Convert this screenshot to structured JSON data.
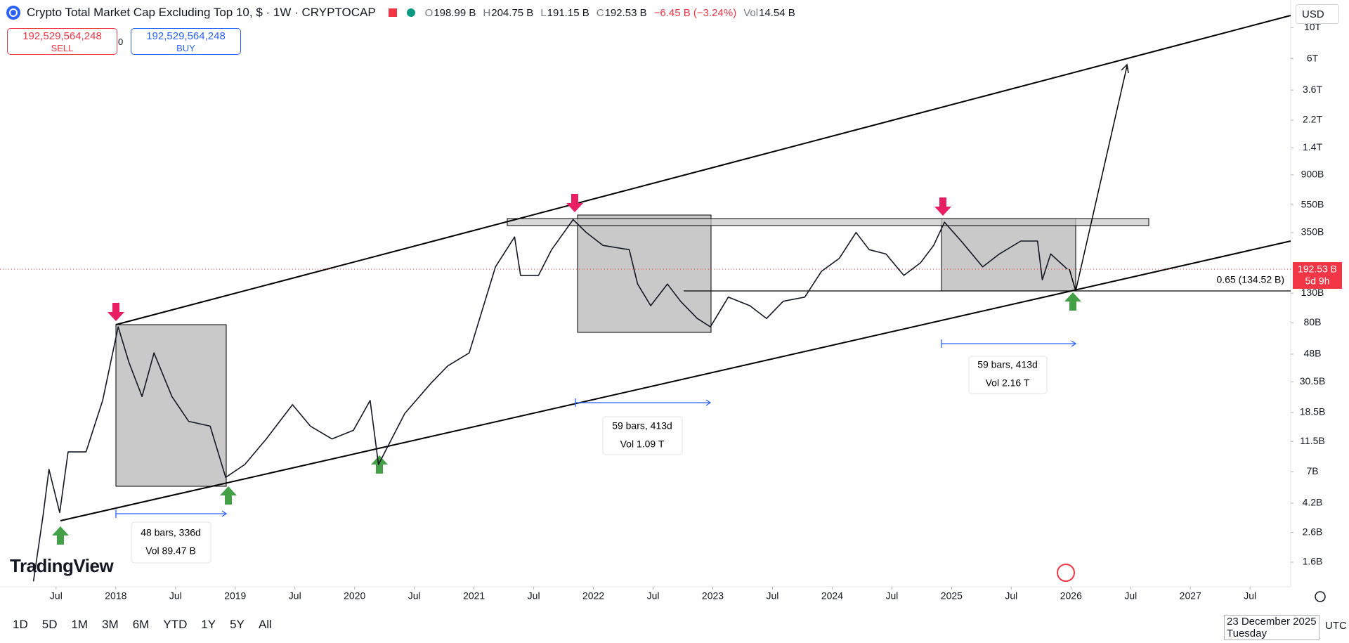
{
  "chart_data": {
    "type": "line",
    "log_scale": true,
    "color": "#131722",
    "x": [
      2017.31,
      2017.39,
      2017.44,
      2017.53,
      2017.6,
      2017.75,
      2017.89,
      2018.02,
      2018.11,
      2018.22,
      2018.32,
      2018.47,
      2018.61,
      2018.79,
      2018.92,
      2019.08,
      2019.26,
      2019.48,
      2019.63,
      2019.81,
      2019.99,
      2020.13,
      2020.2,
      2020.42,
      2020.64,
      2020.78,
      2020.96,
      2021.07,
      2021.18,
      2021.34,
      2021.39,
      2021.54,
      2021.65,
      2021.83,
      2021.94,
      2022.08,
      2022.3,
      2022.37,
      2022.48,
      2022.62,
      2022.73,
      2022.87,
      2022.98,
      2023.13,
      2023.31,
      2023.45,
      2023.59,
      2023.77,
      2023.91,
      2024.06,
      2024.2,
      2024.31,
      2024.45,
      2024.6,
      2024.74,
      2024.85,
      2024.94,
      2025.08,
      2025.26,
      2025.4,
      2025.58,
      2025.72,
      2025.76,
      2025.83,
      2025.97
    ],
    "values": [
      1.17,
      3.4,
      7.3,
      3.6,
      9.7,
      9.7,
      22.5,
      75,
      42,
      24,
      49,
      24,
      16,
      14.8,
      6.4,
      7.9,
      12,
      21,
      14.8,
      12,
      13.8,
      22.5,
      7.9,
      18.2,
      29.9,
      39.6,
      49,
      99,
      200,
      326,
      174,
      174,
      265,
      433,
      351,
      284,
      265,
      151,
      106,
      151,
      114,
      86,
      75,
      122,
      106,
      86,
      114,
      122,
      186,
      230,
      351,
      265,
      247,
      174,
      214,
      284,
      415,
      305,
      200,
      247,
      305,
      305,
      162,
      247,
      192.53
    ],
    "xlim": [
      2017.03,
      2027.84
    ],
    "ylim": [
      1.07,
      15700
    ],
    "xticks": [
      {
        "value": 2017.5,
        "label": "Jul"
      },
      2018,
      {
        "value": 2018.5,
        "label": "Jul"
      },
      2019,
      {
        "value": 2019.5,
        "label": "Jul"
      },
      2020,
      {
        "value": 2020.5,
        "label": "Jul"
      },
      2021,
      {
        "value": 2021.5,
        "label": "Jul"
      },
      2022,
      {
        "value": 2022.5,
        "label": "Jul"
      },
      2023,
      {
        "value": 2023.5,
        "label": "Jul"
      },
      2024,
      {
        "value": 2024.5,
        "label": "Jul"
      },
      2025,
      {
        "value": 2025.5,
        "label": "Jul"
      },
      2026,
      {
        "value": 2026.5,
        "label": "Jul"
      },
      2027,
      {
        "value": 2027.5,
        "label": "Jul"
      }
    ],
    "yticks": [
      {
        "value": 10000,
        "label": "10T"
      },
      {
        "value": 6000,
        "label": "6T"
      },
      {
        "value": 3600,
        "label": "3.6T"
      },
      {
        "value": 2200,
        "label": "2.2T"
      },
      {
        "value": 1400,
        "label": "1.4T"
      },
      {
        "value": 900,
        "label": "900B"
      },
      {
        "value": 550,
        "label": "550B"
      },
      {
        "value": 350,
        "label": "350B"
      },
      {
        "value": 130,
        "label": "130B"
      },
      {
        "value": 80,
        "label": "80B"
      },
      {
        "value": 48,
        "label": "48B"
      },
      {
        "value": 30.5,
        "label": "30.5B"
      },
      {
        "value": 18.5,
        "label": "18.5B"
      },
      {
        "value": 11.5,
        "label": "11.5B"
      },
      {
        "value": 7,
        "label": "7B"
      },
      {
        "value": 4.2,
        "label": "4.2B"
      },
      {
        "value": 2.6,
        "label": "2.6B"
      },
      {
        "value": 1.6,
        "label": "1.6B"
      }
    ],
    "annotations": [
      "48 bars, 336d",
      "Vol 89.47 B",
      "59 bars, 413d",
      "Vol 1.09 T",
      "59 bars, 413d",
      "Vol 2.16 T",
      "0.65 (134.52 B)"
    ]
  },
  "ui": {
    "title": "Crypto Total Market Cap Excluding Top 10, $ · 1W · CRYPTOCAP",
    "ohlc": [
      {
        "key": "O",
        "value": "198.99 B"
      },
      {
        "key": "H",
        "value": "204.75 B"
      },
      {
        "key": "L",
        "value": "191.15 B"
      },
      {
        "key": "C",
        "value": "192.53 B"
      },
      {
        "key": "",
        "value": "−6.45 B (−3.24%)"
      },
      {
        "key": "Vol",
        "value": "14.54 B"
      }
    ],
    "sell_price": "192,529,564,248",
    "sell_label": "SELL",
    "spread": "0",
    "buy_price": "192,529,564,248",
    "buy_label": "BUY",
    "currency": "USD",
    "last_price": "192.53 B",
    "countdown": "5d 9h",
    "logo": "TradingView",
    "ranges": [
      "1D",
      "5D",
      "1M",
      "3M",
      "6M",
      "YTD",
      "1Y",
      "5Y",
      "All"
    ],
    "date": "23 December 2025",
    "weekday": "Tuesday",
    "timezone": "UTC"
  }
}
